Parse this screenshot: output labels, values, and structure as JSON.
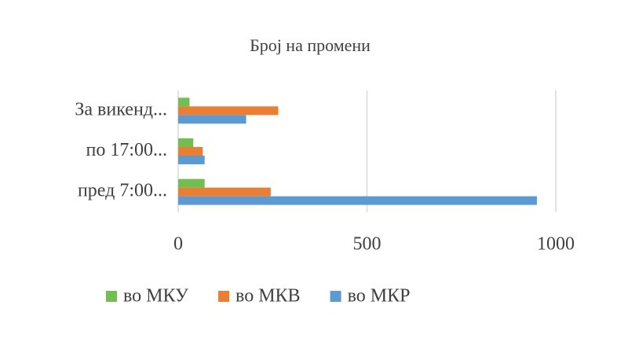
{
  "chart_data": {
    "type": "bar",
    "title": "Број на промени",
    "categories": [
      "За викенд...",
      "по 17:00...",
      "пред 7:00..."
    ],
    "series": [
      {
        "name": "во МКУ",
        "color": "#70c050",
        "values": [
          30,
          40,
          70
        ]
      },
      {
        "name": "во МКВ",
        "color": "#ed7d31",
        "values": [
          265,
          65,
          245
        ]
      },
      {
        "name": "во МКР",
        "color": "#5b9bd5",
        "values": [
          180,
          70,
          950
        ]
      }
    ],
    "xlim": [
      0,
      1000
    ],
    "xticks": [
      0,
      500,
      1000
    ],
    "grid": true,
    "legend": "bottom"
  }
}
